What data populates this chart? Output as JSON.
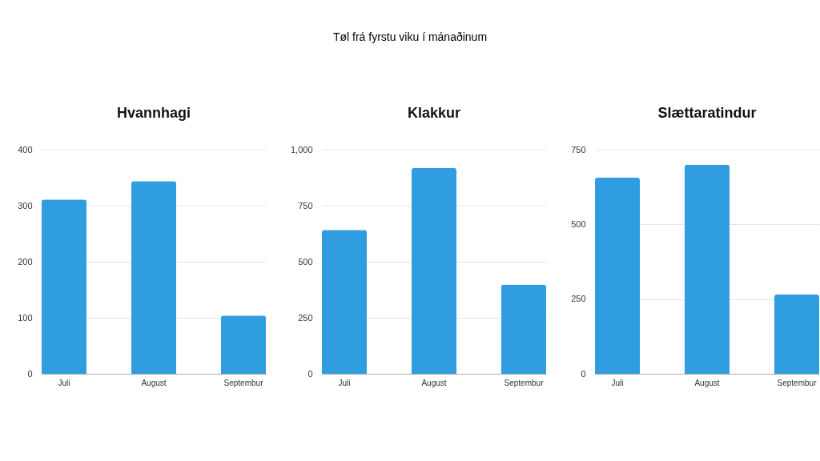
{
  "chart_data": [
    {
      "type": "other",
      "title": "Tøl frá fyrstu viku í mánaðinum"
    },
    {
      "type": "bar",
      "title": "Hvannhagi",
      "categories": [
        "Juli",
        "August",
        "Septembur"
      ],
      "values": [
        311,
        344,
        104
      ],
      "color": "#2f9de0",
      "ylim": [
        0,
        400
      ],
      "yticks": [
        0,
        100,
        200,
        300,
        400
      ],
      "grid": "y"
    },
    {
      "type": "bar",
      "title": "Klakkur",
      "categories": [
        "Juli",
        "August",
        "Septembur"
      ],
      "values": [
        642,
        918,
        398
      ],
      "color": "#2f9de0",
      "ylim": [
        0,
        1000
      ],
      "yticks": [
        0,
        250,
        500,
        750,
        {
          "value": 1000,
          "label": "1,000"
        }
      ],
      "grid": "y"
    },
    {
      "type": "bar",
      "title": "Slættaratindur",
      "categories": [
        "Juli",
        "August",
        "Septembur"
      ],
      "values": [
        656,
        700,
        265
      ],
      "color": "#2f9de0",
      "ylim": [
        0,
        750
      ],
      "yticks": [
        0,
        250,
        500,
        750
      ],
      "grid": "y"
    }
  ]
}
